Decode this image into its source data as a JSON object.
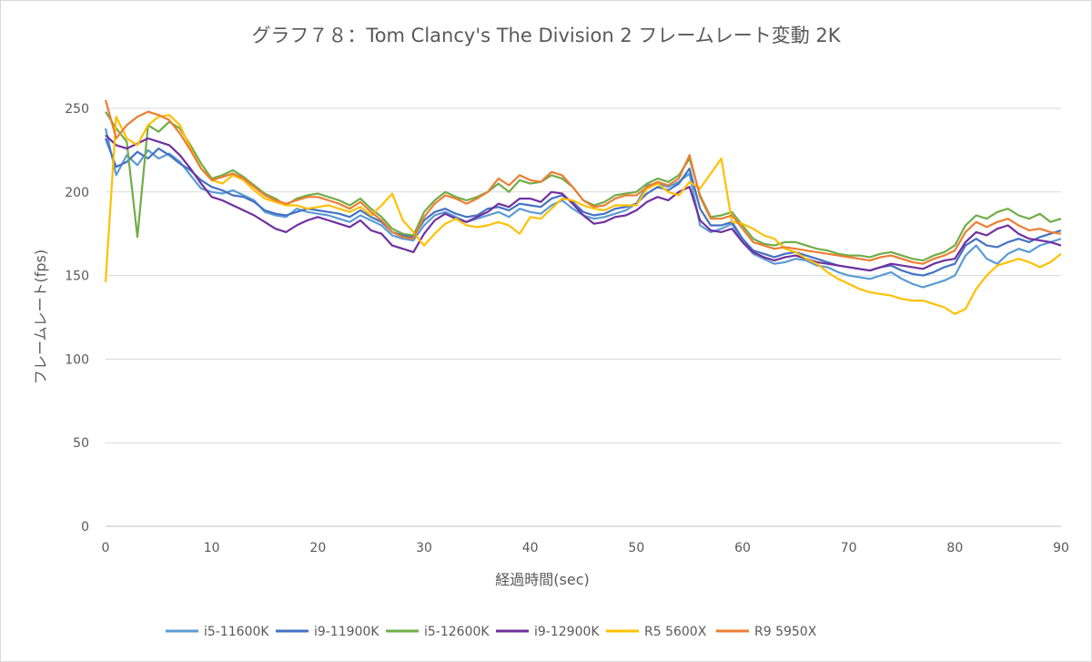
{
  "chart_data": {
    "type": "line",
    "title": "グラフ７８：Tom Clancy's The Division 2 フレームレート変動 2K",
    "xlabel": "経過時間(sec)",
    "ylabel": "フレームレート(fps)",
    "xlim": [
      0,
      90
    ],
    "ylim": [
      0,
      250
    ],
    "x_ticks": [
      0,
      10,
      20,
      30,
      40,
      50,
      60,
      70,
      80,
      90
    ],
    "y_ticks": [
      0,
      50,
      100,
      150,
      200,
      250
    ],
    "grid": "horizontal",
    "legend_position": "bottom",
    "x": [
      0,
      1,
      2,
      3,
      4,
      5,
      6,
      7,
      8,
      9,
      10,
      11,
      12,
      13,
      14,
      15,
      16,
      17,
      18,
      19,
      20,
      21,
      22,
      23,
      24,
      25,
      26,
      27,
      28,
      29,
      30,
      31,
      32,
      33,
      34,
      35,
      36,
      37,
      38,
      39,
      40,
      41,
      42,
      43,
      44,
      45,
      46,
      47,
      48,
      49,
      50,
      51,
      52,
      53,
      54,
      55,
      56,
      57,
      58,
      59,
      60,
      61,
      62,
      63,
      64,
      65,
      66,
      67,
      68,
      69,
      70,
      71,
      72,
      73,
      74,
      75,
      76,
      77,
      78,
      79,
      80,
      81,
      82,
      83,
      84,
      85,
      86,
      87,
      88,
      89,
      90
    ],
    "series": [
      {
        "name": "i5-11600K",
        "color": "#5b9bd5",
        "values": [
          238,
          210,
          222,
          216,
          225,
          220,
          223,
          218,
          210,
          202,
          200,
          199,
          201,
          198,
          195,
          188,
          186,
          185,
          190,
          188,
          187,
          186,
          184,
          182,
          186,
          183,
          180,
          174,
          172,
          171,
          180,
          186,
          188,
          185,
          182,
          184,
          186,
          188,
          185,
          190,
          188,
          187,
          192,
          195,
          190,
          186,
          184,
          185,
          187,
          189,
          193,
          204,
          205,
          203,
          206,
          211,
          180,
          176,
          178,
          181,
          170,
          163,
          160,
          157,
          158,
          160,
          159,
          156,
          155,
          152,
          150,
          149,
          148,
          150,
          152,
          148,
          145,
          143,
          145,
          147,
          150,
          162,
          168,
          160,
          157,
          163,
          166,
          164,
          168,
          170,
          172
        ]
      },
      {
        "name": "i9-11900K",
        "color": "#4472c4",
        "values": [
          232,
          215,
          218,
          224,
          220,
          226,
          222,
          217,
          213,
          207,
          203,
          201,
          198,
          197,
          194,
          189,
          187,
          186,
          188,
          190,
          189,
          188,
          187,
          185,
          189,
          185,
          182,
          176,
          174,
          173,
          183,
          188,
          190,
          187,
          185,
          186,
          190,
          191,
          189,
          193,
          192,
          191,
          196,
          198,
          194,
          188,
          186,
          187,
          190,
          191,
          193,
          199,
          203,
          201,
          205,
          214,
          190,
          180,
          180,
          182,
          172,
          165,
          163,
          161,
          163,
          164,
          162,
          160,
          158,
          156,
          155,
          154,
          153,
          155,
          156,
          153,
          151,
          150,
          152,
          155,
          157,
          168,
          172,
          168,
          167,
          170,
          172,
          170,
          173,
          175,
          177
        ]
      },
      {
        "name": "i5-12600K",
        "color": "#70ad47",
        "values": [
          248,
          238,
          230,
          173,
          240,
          236,
          242,
          238,
          228,
          217,
          208,
          210,
          213,
          209,
          204,
          199,
          196,
          192,
          196,
          198,
          199,
          197,
          195,
          192,
          196,
          190,
          185,
          178,
          175,
          174,
          188,
          195,
          200,
          197,
          195,
          197,
          200,
          205,
          200,
          207,
          205,
          206,
          210,
          208,
          203,
          195,
          192,
          194,
          198,
          199,
          200,
          205,
          208,
          206,
          210,
          220,
          198,
          185,
          186,
          188,
          180,
          172,
          169,
          168,
          170,
          170,
          168,
          166,
          165,
          163,
          162,
          162,
          161,
          163,
          164,
          162,
          160,
          159,
          162,
          164,
          168,
          180,
          186,
          184,
          188,
          190,
          186,
          184,
          187,
          182,
          184
        ]
      },
      {
        "name": "i9-12900K",
        "color": "#7030a0",
        "values": [
          234,
          228,
          226,
          229,
          232,
          230,
          228,
          222,
          214,
          205,
          197,
          195,
          192,
          189,
          186,
          182,
          178,
          176,
          180,
          183,
          185,
          183,
          181,
          179,
          183,
          177,
          175,
          168,
          166,
          164,
          175,
          183,
          187,
          184,
          182,
          185,
          188,
          193,
          191,
          196,
          196,
          194,
          200,
          199,
          193,
          186,
          181,
          182,
          185,
          186,
          189,
          194,
          197,
          195,
          200,
          203,
          183,
          177,
          176,
          178,
          170,
          164,
          161,
          159,
          161,
          162,
          160,
          158,
          157,
          156,
          155,
          154,
          153,
          155,
          157,
          156,
          155,
          154,
          157,
          159,
          160,
          170,
          176,
          174,
          178,
          180,
          175,
          172,
          171,
          170,
          168
        ]
      },
      {
        "name": "R5 5600X",
        "color": "#ffc000",
        "values": [
          146,
          245,
          232,
          228,
          240,
          245,
          246,
          240,
          226,
          214,
          207,
          205,
          210,
          207,
          201,
          196,
          194,
          192,
          192,
          190,
          191,
          192,
          190,
          188,
          191,
          186,
          192,
          199,
          183,
          176,
          168,
          175,
          181,
          184,
          180,
          179,
          180,
          182,
          180,
          175,
          185,
          184,
          190,
          196,
          195,
          192,
          190,
          189,
          192,
          192,
          192,
          202,
          205,
          200,
          198,
          206,
          202,
          211,
          220,
          182,
          181,
          178,
          174,
          172,
          166,
          164,
          160,
          157,
          152,
          148,
          145,
          142,
          140,
          139,
          138,
          136,
          135,
          135,
          133,
          131,
          127,
          130,
          142,
          150,
          156,
          158,
          160,
          158,
          155,
          158,
          163
        ]
      },
      {
        "name": "R9 5950X",
        "color": "#ed7d31",
        "values": [
          255,
          232,
          240,
          245,
          248,
          246,
          243,
          235,
          225,
          214,
          207,
          209,
          211,
          208,
          203,
          198,
          195,
          193,
          195,
          197,
          197,
          195,
          193,
          190,
          194,
          188,
          183,
          176,
          173,
          172,
          185,
          193,
          198,
          196,
          193,
          196,
          200,
          208,
          204,
          210,
          207,
          206,
          212,
          210,
          203,
          195,
          191,
          192,
          196,
          198,
          198,
          203,
          206,
          204,
          208,
          222,
          197,
          184,
          184,
          186,
          178,
          170,
          168,
          166,
          167,
          166,
          165,
          164,
          163,
          162,
          161,
          160,
          159,
          161,
          162,
          160,
          158,
          157,
          160,
          162,
          165,
          176,
          182,
          179,
          182,
          184,
          180,
          177,
          178,
          176,
          175
        ]
      }
    ]
  }
}
